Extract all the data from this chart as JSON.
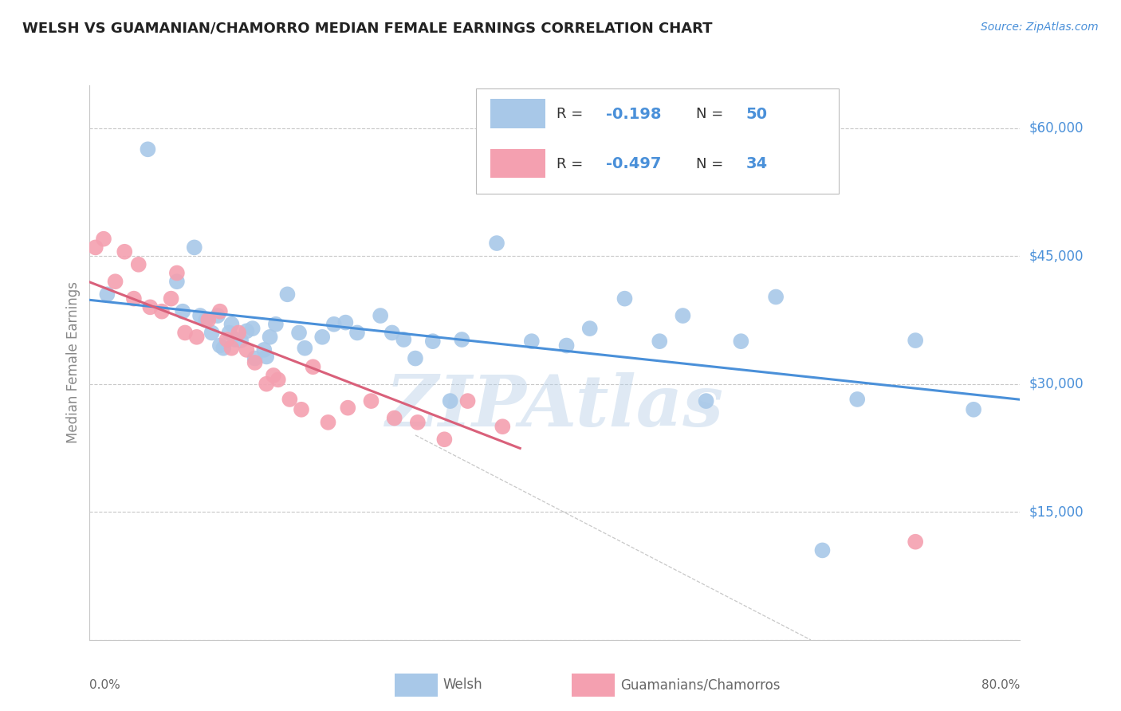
{
  "title": "WELSH VS GUAMANIAN/CHAMORRO MEDIAN FEMALE EARNINGS CORRELATION CHART",
  "source": "Source: ZipAtlas.com",
  "ylabel": "Median Female Earnings",
  "yticks": [
    0,
    15000,
    30000,
    45000,
    60000
  ],
  "ytick_labels": [
    "",
    "$15,000",
    "$30,000",
    "$45,000",
    "$60,000"
  ],
  "xlim": [
    0.0,
    0.8
  ],
  "ylim": [
    0,
    65000
  ],
  "watermark": "ZIPAtlas",
  "legend_welsh_R": "-0.198",
  "legend_welsh_N": "50",
  "legend_guam_R": "-0.497",
  "legend_guam_N": "34",
  "welsh_color": "#a8c8e8",
  "guam_color": "#f4a0b0",
  "welsh_line_color": "#4a90d9",
  "guam_line_color": "#d9607a",
  "background_color": "#ffffff",
  "grid_color": "#c8c8c8",
  "title_color": "#222222",
  "source_color": "#4a90d9",
  "tick_label_color": "#4a90d9",
  "axis_label_color": "#888888",
  "bottom_label_color": "#666666",
  "welsh_scatter_x": [
    0.015,
    0.05,
    0.075,
    0.08,
    0.09,
    0.095,
    0.1,
    0.105,
    0.11,
    0.112,
    0.115,
    0.12,
    0.122,
    0.125,
    0.13,
    0.135,
    0.14,
    0.142,
    0.15,
    0.152,
    0.155,
    0.16,
    0.17,
    0.18,
    0.185,
    0.2,
    0.21,
    0.22,
    0.23,
    0.25,
    0.26,
    0.27,
    0.28,
    0.295,
    0.31,
    0.32,
    0.35,
    0.38,
    0.41,
    0.43,
    0.46,
    0.49,
    0.51,
    0.53,
    0.56,
    0.59,
    0.63,
    0.66,
    0.71,
    0.76
  ],
  "welsh_scatter_y": [
    40500,
    57500,
    42000,
    38500,
    46000,
    38000,
    37500,
    36000,
    38000,
    34500,
    34200,
    36000,
    37000,
    35200,
    35100,
    36200,
    36500,
    33000,
    34000,
    33200,
    35500,
    37000,
    40500,
    36000,
    34200,
    35500,
    37000,
    37200,
    36000,
    38000,
    36000,
    35200,
    33000,
    35000,
    28000,
    35200,
    46500,
    35000,
    34500,
    36500,
    40000,
    35000,
    38000,
    28000,
    35000,
    40200,
    10500,
    28200,
    35100,
    27000
  ],
  "guam_scatter_x": [
    0.005,
    0.012,
    0.022,
    0.03,
    0.038,
    0.042,
    0.052,
    0.062,
    0.07,
    0.075,
    0.082,
    0.092,
    0.102,
    0.112,
    0.118,
    0.122,
    0.128,
    0.135,
    0.142,
    0.152,
    0.158,
    0.162,
    0.172,
    0.182,
    0.192,
    0.205,
    0.222,
    0.242,
    0.262,
    0.282,
    0.305,
    0.325,
    0.355,
    0.71
  ],
  "guam_scatter_y": [
    46000,
    47000,
    42000,
    45500,
    40000,
    44000,
    39000,
    38500,
    40000,
    43000,
    36000,
    35500,
    37500,
    38500,
    35200,
    34200,
    36000,
    34000,
    32500,
    30000,
    31000,
    30500,
    28200,
    27000,
    32000,
    25500,
    27200,
    28000,
    26000,
    25500,
    23500,
    28000,
    25000,
    11500
  ],
  "dashed_line_x": [
    0.28,
    0.62
  ],
  "dashed_line_y": [
    24000,
    0
  ]
}
